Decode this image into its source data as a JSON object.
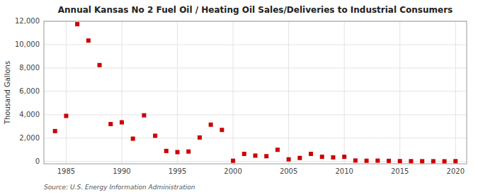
{
  "chart_data": {
    "type": "scatter",
    "title": "Annual Kansas No 2 Fuel Oil / Heating Oil Sales/Deliveries to Industrial Consumers",
    "ylabel": "Thousand Gallons",
    "annotations": [
      "Source: U.S. Energy Information Administration"
    ],
    "x": [
      1984,
      1985,
      1986,
      1987,
      1988,
      1989,
      1990,
      1991,
      1992,
      1993,
      1994,
      1995,
      1996,
      1997,
      1998,
      1999,
      2000,
      2001,
      2002,
      2003,
      2004,
      2005,
      2006,
      2007,
      2008,
      2009,
      2010,
      2011,
      2012,
      2013,
      2014,
      2015,
      2016,
      2017,
      2018,
      2019,
      2020
    ],
    "values": [
      2600,
      3900,
      11750,
      10350,
      8250,
      3200,
      3350,
      1950,
      3950,
      2200,
      900,
      800,
      850,
      2050,
      3150,
      2700,
      60,
      650,
      500,
      450,
      1000,
      180,
      300,
      650,
      400,
      350,
      400,
      80,
      60,
      70,
      50,
      30,
      25,
      20,
      20,
      15,
      25
    ],
    "color": "#cc0000",
    "marker": "square",
    "xlim": [
      1983,
      2021
    ],
    "ylim": [
      -200,
      12000
    ],
    "xticks": [
      1985,
      1990,
      1995,
      2000,
      2005,
      2010,
      2015,
      2020
    ],
    "yticks": [
      0,
      {
        "value": 2000,
        "label": "2,000"
      },
      {
        "value": 4000,
        "label": "4,000"
      },
      {
        "value": 6000,
        "label": "6,000"
      },
      {
        "value": 8000,
        "label": "8,000"
      },
      {
        "value": 10000,
        "label": "10,000"
      },
      {
        "value": 12000,
        "label": "12,000"
      }
    ],
    "grid": true
  }
}
